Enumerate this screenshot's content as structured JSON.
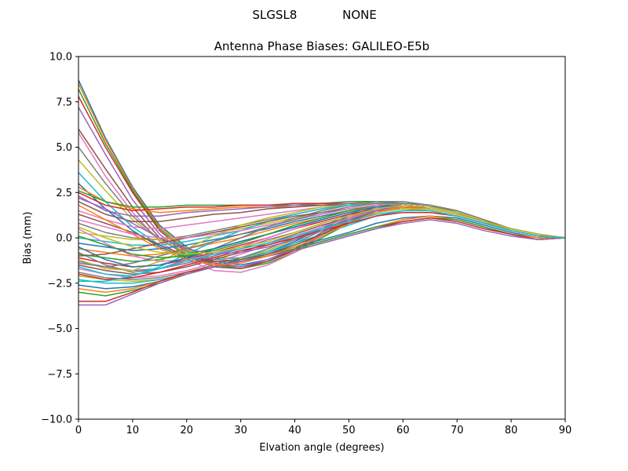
{
  "header": {
    "station": "SLGSL8",
    "radome": "NONE"
  },
  "chart_data": {
    "type": "line",
    "title": "Antenna Phase Biases: GALILEO-E5b",
    "xlabel": "Elvation angle (degrees)",
    "ylabel": "Bias (mm)",
    "xlim": [
      0,
      90
    ],
    "ylim": [
      -10,
      10
    ],
    "xticks": [
      0,
      10,
      20,
      30,
      40,
      50,
      60,
      70,
      80,
      90
    ],
    "xtick_labels": [
      "0",
      "10",
      "20",
      "30",
      "40",
      "50",
      "60",
      "70",
      "80",
      "90"
    ],
    "yticks": [
      -10,
      -7.5,
      -5,
      -2.5,
      0,
      2.5,
      5,
      7.5,
      10
    ],
    "ytick_labels": [
      "−10.0",
      "−7.5",
      "−5.0",
      "−2.5",
      "0.0",
      "2.5",
      "5.0",
      "7.5",
      "10.0"
    ],
    "grid": false,
    "legend": false,
    "colors": [
      "#1f77b4",
      "#ff7f0e",
      "#2ca02c",
      "#d62728",
      "#9467bd",
      "#8c564b",
      "#e377c2",
      "#7f7f7f",
      "#bcbd22",
      "#17becf"
    ],
    "x": [
      0,
      5,
      10,
      15,
      20,
      25,
      30,
      35,
      40,
      45,
      50,
      55,
      60,
      65,
      70,
      75,
      80,
      85,
      90
    ],
    "series": [
      {
        "values": [
          8.7,
          5.5,
          2.8,
          0.7,
          -0.5,
          -1.3,
          -1.5,
          -1.2,
          -0.6,
          0.2,
          1.0,
          1.5,
          1.6,
          1.5,
          1.2,
          0.8,
          0.4,
          0.1,
          0.0
        ]
      },
      {
        "values": [
          8.5,
          5.4,
          2.7,
          0.6,
          -0.6,
          -1.4,
          -1.6,
          -1.3,
          -0.7,
          0.1,
          0.9,
          1.4,
          1.6,
          1.5,
          1.2,
          0.8,
          0.4,
          0.1,
          0.0
        ]
      },
      {
        "values": [
          8.2,
          5.2,
          2.6,
          0.5,
          -0.7,
          -1.5,
          -1.7,
          -1.4,
          -0.8,
          0.0,
          0.8,
          1.4,
          1.7,
          1.6,
          1.3,
          0.9,
          0.4,
          0.1,
          0.0
        ]
      },
      {
        "values": [
          7.8,
          5.0,
          2.5,
          0.4,
          -0.8,
          -1.4,
          -1.6,
          -1.3,
          -0.7,
          0.1,
          0.9,
          1.5,
          1.7,
          1.6,
          1.3,
          0.9,
          0.5,
          0.2,
          0.0
        ]
      },
      {
        "values": [
          7.2,
          4.6,
          2.1,
          0.2,
          -0.9,
          -1.5,
          -1.6,
          -1.2,
          -0.6,
          0.2,
          1.0,
          1.6,
          1.8,
          1.7,
          1.4,
          0.9,
          0.5,
          0.2,
          0.0
        ]
      },
      {
        "values": [
          6.0,
          3.8,
          1.7,
          0.0,
          -1.0,
          -1.6,
          -1.7,
          -1.3,
          -0.6,
          0.3,
          1.1,
          1.6,
          1.8,
          1.7,
          1.4,
          0.9,
          0.5,
          0.2,
          0.0
        ]
      },
      {
        "values": [
          5.8,
          3.4,
          1.4,
          -0.2,
          -1.2,
          -1.8,
          -1.9,
          -1.5,
          -0.8,
          0.1,
          1.0,
          1.6,
          1.8,
          1.7,
          1.4,
          0.9,
          0.5,
          0.2,
          0.0
        ]
      },
      {
        "values": [
          5.0,
          3.0,
          1.2,
          -0.1,
          -0.9,
          -1.3,
          -1.3,
          -0.9,
          -0.3,
          0.4,
          1.1,
          1.6,
          1.8,
          1.7,
          1.4,
          0.9,
          0.5,
          0.2,
          0.0
        ]
      },
      {
        "values": [
          4.3,
          2.6,
          1.0,
          -0.1,
          -0.8,
          -1.1,
          -1.1,
          -0.8,
          -0.2,
          0.5,
          1.2,
          1.7,
          1.9,
          1.8,
          1.4,
          0.9,
          0.5,
          0.2,
          0.0
        ]
      },
      {
        "values": [
          3.6,
          2.0,
          0.6,
          -0.4,
          -1.0,
          -1.2,
          -1.1,
          -0.7,
          -0.1,
          0.6,
          1.3,
          1.8,
          1.9,
          1.8,
          1.4,
          0.9,
          0.5,
          0.2,
          0.0
        ]
      },
      {
        "values": [
          3.0,
          1.6,
          0.4,
          -0.5,
          -1.1,
          -1.3,
          -1.2,
          -0.8,
          -0.2,
          0.5,
          1.2,
          1.7,
          1.9,
          1.8,
          1.4,
          0.9,
          0.5,
          0.2,
          0.0
        ]
      },
      {
        "values": [
          2.8,
          2.0,
          1.6,
          1.4,
          1.5,
          1.6,
          1.7,
          1.7,
          1.7,
          1.8,
          1.9,
          2.0,
          1.9,
          1.8,
          1.5,
          1.0,
          0.5,
          0.2,
          0.0
        ]
      },
      {
        "values": [
          2.6,
          2.0,
          1.7,
          1.7,
          1.8,
          1.8,
          1.8,
          1.8,
          1.8,
          1.9,
          2.0,
          2.0,
          1.9,
          1.8,
          1.5,
          1.0,
          0.5,
          0.2,
          0.0
        ]
      },
      {
        "values": [
          2.5,
          1.8,
          1.5,
          1.6,
          1.7,
          1.7,
          1.8,
          1.8,
          1.9,
          1.9,
          1.9,
          1.9,
          1.8,
          1.7,
          1.4,
          0.9,
          0.5,
          0.2,
          0.0
        ]
      },
      {
        "values": [
          2.3,
          1.5,
          1.2,
          1.2,
          1.4,
          1.5,
          1.6,
          1.7,
          1.8,
          1.8,
          1.9,
          1.9,
          1.8,
          1.7,
          1.4,
          0.9,
          0.5,
          0.2,
          0.0
        ]
      },
      {
        "values": [
          2.0,
          1.3,
          0.9,
          0.9,
          1.1,
          1.3,
          1.4,
          1.6,
          1.7,
          1.8,
          1.8,
          1.9,
          1.8,
          1.7,
          1.4,
          0.9,
          0.5,
          0.2,
          0.0
        ]
      },
      {
        "values": [
          1.5,
          1.0,
          0.6,
          0.5,
          0.7,
          0.9,
          1.1,
          1.3,
          1.5,
          1.7,
          1.8,
          1.9,
          1.8,
          1.7,
          1.4,
          0.9,
          0.5,
          0.2,
          0.0
        ]
      },
      {
        "values": [
          0.8,
          0.3,
          0.0,
          -0.1,
          0.1,
          0.4,
          0.7,
          1.0,
          1.3,
          1.6,
          1.8,
          1.9,
          1.9,
          1.8,
          1.4,
          0.9,
          0.5,
          0.2,
          0.0
        ]
      },
      {
        "values": [
          0.3,
          0.1,
          -0.1,
          -0.1,
          0.0,
          0.3,
          0.5,
          0.8,
          1.1,
          1.4,
          1.7,
          1.9,
          1.9,
          1.8,
          1.4,
          0.9,
          0.5,
          0.2,
          0.0
        ]
      },
      {
        "values": [
          0.0,
          -0.2,
          -0.4,
          -0.4,
          -0.2,
          0.1,
          0.4,
          0.7,
          1.0,
          1.3,
          1.6,
          1.8,
          1.9,
          1.8,
          1.4,
          0.9,
          0.5,
          0.2,
          0.0
        ]
      },
      {
        "values": [
          -0.3,
          -0.5,
          -0.7,
          -0.6,
          -0.4,
          -0.1,
          0.2,
          0.5,
          0.9,
          1.2,
          1.5,
          1.8,
          1.9,
          1.8,
          1.4,
          0.9,
          0.5,
          0.2,
          0.0
        ]
      },
      {
        "values": [
          -0.6,
          -0.8,
          -1.0,
          -0.9,
          -0.6,
          -0.3,
          0.0,
          0.4,
          0.8,
          1.1,
          1.5,
          1.7,
          1.8,
          1.7,
          1.4,
          0.9,
          0.5,
          0.2,
          0.0
        ]
      },
      {
        "values": [
          -0.9,
          -1.1,
          -1.3,
          -1.2,
          -0.9,
          -0.6,
          -0.2,
          0.2,
          0.6,
          1.0,
          1.4,
          1.7,
          1.8,
          1.7,
          1.4,
          0.9,
          0.5,
          0.2,
          0.0
        ]
      },
      {
        "values": [
          -1.1,
          -1.4,
          -1.6,
          -1.5,
          -1.2,
          -0.8,
          -0.4,
          0.0,
          0.5,
          0.9,
          1.3,
          1.6,
          1.8,
          1.7,
          1.4,
          0.9,
          0.5,
          0.2,
          0.0
        ]
      },
      {
        "values": [
          -1.3,
          -1.6,
          -1.8,
          -1.7,
          -1.4,
          -1.0,
          -0.6,
          -0.1,
          0.3,
          0.8,
          1.2,
          1.6,
          1.8,
          1.7,
          1.4,
          0.9,
          0.5,
          0.2,
          0.0
        ]
      },
      {
        "values": [
          -1.5,
          -1.8,
          -2.0,
          -1.9,
          -1.6,
          -1.2,
          -0.8,
          -0.3,
          0.2,
          0.7,
          1.1,
          1.5,
          1.7,
          1.7,
          1.4,
          0.9,
          0.5,
          0.2,
          0.0
        ]
      },
      {
        "values": [
          -1.7,
          -2.0,
          -2.2,
          -2.1,
          -1.8,
          -1.4,
          -0.9,
          -0.4,
          0.1,
          0.6,
          1.1,
          1.5,
          1.7,
          1.7,
          1.4,
          0.9,
          0.5,
          0.2,
          0.0
        ]
      },
      {
        "values": [
          -1.9,
          -2.2,
          -2.3,
          -2.2,
          -1.9,
          -1.5,
          -1.1,
          -0.6,
          0.0,
          0.5,
          1.0,
          1.4,
          1.7,
          1.6,
          1.3,
          0.9,
          0.4,
          0.1,
          0.0
        ]
      },
      {
        "values": [
          -2.1,
          -2.3,
          -2.4,
          -2.3,
          -2.0,
          -1.6,
          -1.2,
          -0.7,
          -0.1,
          0.4,
          0.9,
          1.4,
          1.6,
          1.6,
          1.3,
          0.9,
          0.4,
          0.1,
          0.0
        ]
      },
      {
        "values": [
          -2.3,
          -2.5,
          -2.5,
          -2.3,
          -2.0,
          -1.6,
          -1.2,
          -0.8,
          -0.3,
          0.2,
          0.7,
          1.2,
          1.5,
          1.5,
          1.2,
          0.8,
          0.4,
          0.1,
          0.0
        ]
      },
      {
        "values": [
          -2.6,
          -2.8,
          -2.7,
          -2.4,
          -2.0,
          -1.6,
          -1.2,
          -0.9,
          -0.5,
          -0.1,
          0.3,
          0.8,
          1.1,
          1.2,
          1.1,
          0.7,
          0.3,
          0.0,
          0.0
        ]
      },
      {
        "values": [
          -2.8,
          -3.0,
          -2.8,
          -2.4,
          -2.0,
          -1.6,
          -1.3,
          -1.0,
          -0.6,
          -0.2,
          0.2,
          0.6,
          1.0,
          1.2,
          1.0,
          0.6,
          0.2,
          0.0,
          0.0
        ]
      },
      {
        "values": [
          -3.0,
          -3.2,
          -2.9,
          -2.5,
          -2.0,
          -1.6,
          -1.3,
          -1.0,
          -0.6,
          -0.2,
          0.2,
          0.6,
          0.9,
          1.1,
          1.0,
          0.6,
          0.2,
          -0.1,
          0.0
        ]
      },
      {
        "values": [
          -3.5,
          -3.5,
          -3.0,
          -2.4,
          -1.9,
          -1.6,
          -1.3,
          -1.0,
          -0.7,
          -0.3,
          0.1,
          0.5,
          0.9,
          1.1,
          0.9,
          0.5,
          0.2,
          -0.1,
          0.0
        ]
      },
      {
        "values": [
          -3.7,
          -3.7,
          -3.1,
          -2.5,
          -2.0,
          -1.6,
          -1.3,
          -1.0,
          -0.7,
          -0.3,
          0.1,
          0.5,
          0.8,
          1.0,
          0.8,
          0.4,
          0.1,
          -0.1,
          0.0
        ]
      },
      {
        "values": [
          1.3,
          0.8,
          0.3,
          -0.4,
          -1.0,
          -1.3,
          -1.2,
          -0.9,
          -0.4,
          0.2,
          0.9,
          1.5,
          1.8,
          1.7,
          1.4,
          0.9,
          0.5,
          0.2,
          0.0
        ]
      },
      {
        "values": [
          0.5,
          -0.3,
          -1.0,
          -1.3,
          -1.2,
          -0.9,
          -0.5,
          0.0,
          0.5,
          1.0,
          1.4,
          1.7,
          1.8,
          1.7,
          1.4,
          0.9,
          0.5,
          0.2,
          0.0
        ]
      },
      {
        "values": [
          -0.8,
          -1.5,
          -1.9,
          -1.7,
          -1.2,
          -0.6,
          0.0,
          0.6,
          1.1,
          1.5,
          1.8,
          2.0,
          2.0,
          1.8,
          1.5,
          1.0,
          0.5,
          0.2,
          0.0
        ]
      },
      {
        "values": [
          -1.2,
          -1.7,
          -1.8,
          -1.3,
          -0.6,
          0.1,
          0.7,
          1.1,
          1.4,
          1.7,
          1.8,
          1.9,
          1.8,
          1.7,
          1.4,
          0.9,
          0.5,
          0.2,
          0.0
        ]
      },
      {
        "values": [
          -1.6,
          -2.0,
          -2.1,
          -1.6,
          -0.9,
          -0.2,
          0.4,
          0.9,
          1.3,
          1.6,
          1.8,
          1.9,
          1.9,
          1.8,
          1.4,
          0.9,
          0.5,
          0.2,
          0.0
        ]
      },
      {
        "values": [
          -0.5,
          -1.2,
          -1.6,
          -1.5,
          -1.1,
          -0.6,
          -0.2,
          0.2,
          0.6,
          1.0,
          1.4,
          1.7,
          1.8,
          1.7,
          1.4,
          0.9,
          0.5,
          0.2,
          0.0
        ]
      },
      {
        "values": [
          1.8,
          1.0,
          0.2,
          -0.6,
          -1.2,
          -1.5,
          -1.4,
          -1.0,
          -0.5,
          0.1,
          0.8,
          1.4,
          1.7,
          1.7,
          1.4,
          0.9,
          0.5,
          0.2,
          0.0
        ]
      },
      {
        "values": [
          0.1,
          -0.4,
          -0.9,
          -1.1,
          -1.0,
          -0.7,
          -0.3,
          0.2,
          0.7,
          1.1,
          1.5,
          1.8,
          1.9,
          1.8,
          1.4,
          0.9,
          0.5,
          0.2,
          0.0
        ]
      },
      {
        "values": [
          -2.0,
          -2.3,
          -2.2,
          -1.9,
          -1.5,
          -1.1,
          -0.7,
          -0.4,
          0.0,
          0.4,
          0.8,
          1.2,
          1.4,
          1.4,
          1.2,
          0.8,
          0.4,
          0.1,
          0.0
        ]
      },
      {
        "values": [
          2.2,
          1.6,
          0.8,
          0.0,
          -0.6,
          -0.9,
          -0.8,
          -0.5,
          -0.1,
          0.4,
          1.0,
          1.5,
          1.8,
          1.7,
          1.4,
          0.9,
          0.5,
          0.2,
          0.0
        ]
      },
      {
        "values": [
          -1.0,
          -0.9,
          -0.6,
          -0.3,
          0.0,
          0.3,
          0.6,
          0.9,
          1.2,
          1.4,
          1.6,
          1.8,
          1.9,
          1.8,
          1.4,
          0.9,
          0.5,
          0.2,
          0.0
        ]
      },
      {
        "values": [
          1.0,
          0.6,
          0.2,
          0.0,
          0.0,
          0.2,
          0.4,
          0.7,
          1.0,
          1.3,
          1.6,
          1.8,
          1.9,
          1.8,
          1.4,
          0.9,
          0.5,
          0.2,
          0.0
        ]
      },
      {
        "values": [
          -1.4,
          -1.6,
          -1.4,
          -1.0,
          -0.6,
          -0.2,
          0.2,
          0.6,
          1.0,
          1.4,
          1.7,
          1.9,
          1.9,
          1.8,
          1.4,
          0.9,
          0.5,
          0.2,
          0.0
        ]
      },
      {
        "values": [
          0.6,
          0.0,
          -0.5,
          -0.8,
          -0.9,
          -0.8,
          -0.5,
          -0.2,
          0.3,
          0.8,
          1.2,
          1.6,
          1.8,
          1.7,
          1.4,
          0.9,
          0.5,
          0.2,
          0.0
        ]
      },
      {
        "values": [
          -2.4,
          -2.4,
          -2.1,
          -1.7,
          -1.3,
          -0.9,
          -0.6,
          -0.3,
          0.1,
          0.5,
          0.9,
          1.3,
          1.5,
          1.5,
          1.2,
          0.8,
          0.4,
          0.1,
          0.0
        ]
      }
    ]
  }
}
